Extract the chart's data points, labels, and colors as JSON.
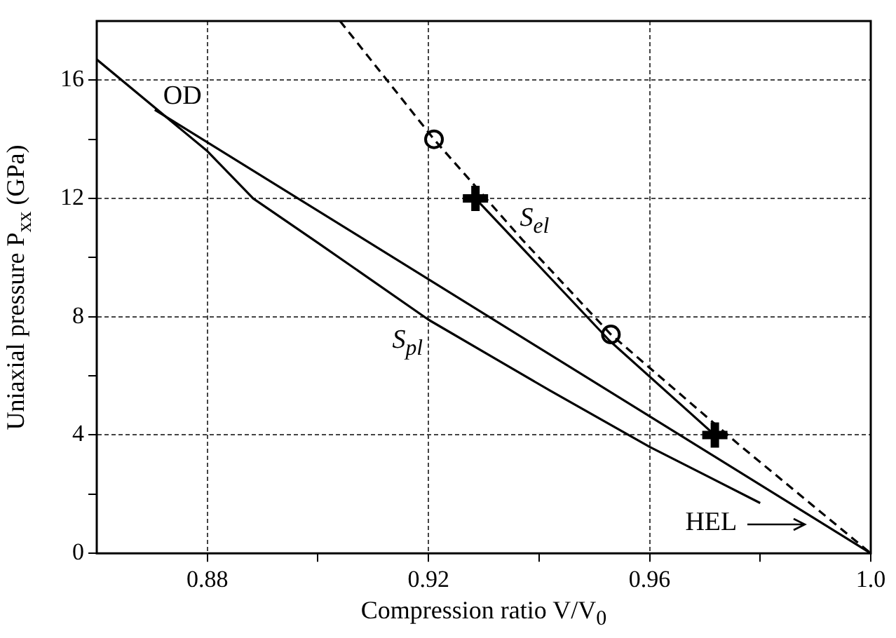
{
  "chart_data": {
    "type": "line",
    "xlabel": "Compression ratio V/V$_{0}$",
    "ylabel": "Uniaxial pressure P$_{xx}$ (GPa)",
    "xlim": [
      0.86,
      1.0
    ],
    "xticks": [
      {
        "value": 0.88,
        "label": "0.88"
      },
      {
        "value": 0.9,
        "label": null
      },
      {
        "value": 0.92,
        "label": "0.92"
      },
      {
        "value": 0.94,
        "label": null
      },
      {
        "value": 0.96,
        "label": "0.96"
      },
      {
        "value": 0.98,
        "label": null
      },
      {
        "value": 1.0,
        "label": "1.0"
      }
    ],
    "ylim": [
      0,
      18
    ],
    "yticks": [
      0,
      {
        "value": 2,
        "label": null
      },
      4,
      {
        "value": 6,
        "label": null
      },
      8,
      {
        "value": 10,
        "label": null
      },
      12,
      {
        "value": 14,
        "label": null
      },
      16
    ],
    "grid": true,
    "legend": false,
    "series": [
      {
        "color": "#000000",
        "line_style": "dashed",
        "marker": "none",
        "x": [
          0.904,
          0.921,
          0.937,
          0.953,
          0.976,
          1.0
        ],
        "values": [
          18,
          14,
          10.6,
          7.4,
          3.7,
          0
        ]
      },
      {
        "color": "#000000",
        "line_style": "solid",
        "marker": "none",
        "x": [
          0.8705,
          1.0
        ],
        "values": [
          15,
          0
        ]
      },
      {
        "color": "#000000",
        "line_style": "solid",
        "marker": "none",
        "x": [
          0.86,
          0.88,
          0.8883,
          0.9,
          0.92,
          0.942,
          0.96,
          0.98
        ],
        "values": [
          16.7,
          13.6,
          12,
          10.5,
          7.9,
          5.5,
          3.6,
          1.7
        ]
      },
      {
        "color": "#000000",
        "line_style": "solid",
        "marker": "none",
        "x": [
          0.9285,
          0.9527,
          0.9718
        ],
        "values": [
          12,
          7.2,
          4
        ]
      },
      {
        "type": "scatter",
        "color": "#000000",
        "marker": "circle",
        "x": [
          0.921,
          0.953
        ],
        "values": [
          14,
          7.4
        ]
      },
      {
        "type": "scatter",
        "color": "#000000",
        "marker": "cross",
        "x": [
          0.9285,
          0.9718
        ],
        "values": [
          12,
          4
        ]
      }
    ],
    "annotations": [
      {
        "text": "OD",
        "x": 0.8705,
        "y": 15
      },
      {
        "text": "S$_{el}$",
        "x": 0.935,
        "y": 10.7
      },
      {
        "text": "S$_{pl}$",
        "x": 0.92,
        "y": 7.9
      },
      {
        "text": "HEL",
        "x": 0.989,
        "y": 1
      }
    ]
  }
}
